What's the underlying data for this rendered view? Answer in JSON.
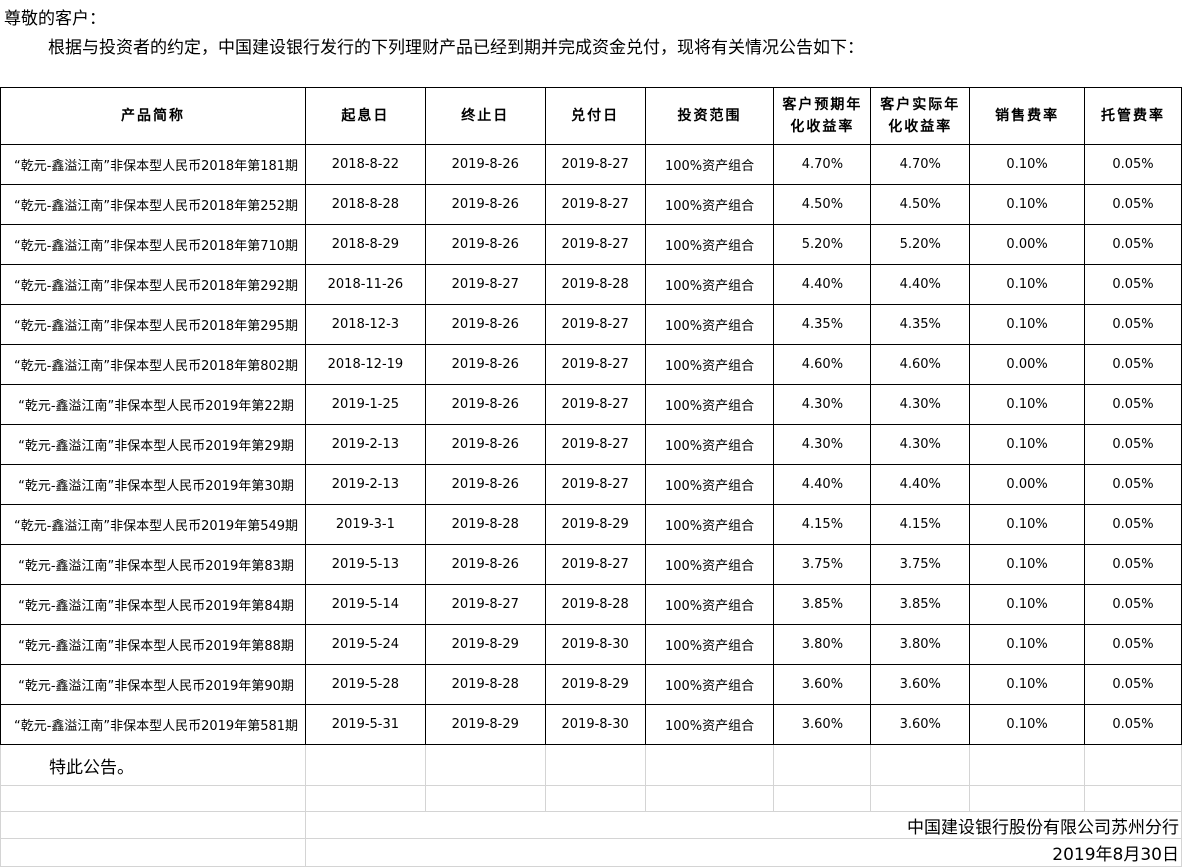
{
  "greeting": "尊敬的客户：",
  "intro": "根据与投资者的约定，中国建设银行发行的下列理财产品已经到期并完成资金兑付，现将有关情况公告如下：",
  "table": {
    "headers": [
      "产品简称",
      "起息日",
      "终止日",
      "兑付日",
      "投资范围",
      "客户预期年化收益率",
      "客户实际年化收益率",
      "销售费率",
      "托管费率"
    ],
    "rows": [
      [
        "“乾元-鑫溢江南”非保本型人民币2018年第181期",
        "2018-8-22",
        "2019-8-26",
        "2019-8-27",
        "100%资产组合",
        "4.70%",
        "4.70%",
        "0.10%",
        "0.05%"
      ],
      [
        "“乾元-鑫溢江南”非保本型人民币2018年第252期",
        "2018-8-28",
        "2019-8-26",
        "2019-8-27",
        "100%资产组合",
        "4.50%",
        "4.50%",
        "0.10%",
        "0.05%"
      ],
      [
        "“乾元-鑫溢江南”非保本型人民币2018年第710期",
        "2018-8-29",
        "2019-8-26",
        "2019-8-27",
        "100%资产组合",
        "5.20%",
        "5.20%",
        "0.00%",
        "0.05%"
      ],
      [
        "“乾元-鑫溢江南”非保本型人民币2018年第292期",
        "2018-11-26",
        "2019-8-27",
        "2019-8-28",
        "100%资产组合",
        "4.40%",
        "4.40%",
        "0.10%",
        "0.05%"
      ],
      [
        "“乾元-鑫溢江南”非保本型人民币2018年第295期",
        "2018-12-3",
        "2019-8-26",
        "2019-8-27",
        "100%资产组合",
        "4.35%",
        "4.35%",
        "0.10%",
        "0.05%"
      ],
      [
        "“乾元-鑫溢江南”非保本型人民币2018年第802期",
        "2018-12-19",
        "2019-8-26",
        "2019-8-27",
        "100%资产组合",
        "4.60%",
        "4.60%",
        "0.00%",
        "0.05%"
      ],
      [
        "“乾元-鑫溢江南”非保本型人民币2019年第22期",
        "2019-1-25",
        "2019-8-26",
        "2019-8-27",
        "100%资产组合",
        "4.30%",
        "4.30%",
        "0.10%",
        "0.05%"
      ],
      [
        "“乾元-鑫溢江南”非保本型人民币2019年第29期",
        "2019-2-13",
        "2019-8-26",
        "2019-8-27",
        "100%资产组合",
        "4.30%",
        "4.30%",
        "0.10%",
        "0.05%"
      ],
      [
        "“乾元-鑫溢江南”非保本型人民币2019年第30期",
        "2019-2-13",
        "2019-8-26",
        "2019-8-27",
        "100%资产组合",
        "4.40%",
        "4.40%",
        "0.00%",
        "0.05%"
      ],
      [
        "“乾元-鑫溢江南”非保本型人民币2019年第549期",
        "2019-3-1",
        "2019-8-28",
        "2019-8-29",
        "100%资产组合",
        "4.15%",
        "4.15%",
        "0.10%",
        "0.05%"
      ],
      [
        "“乾元-鑫溢江南”非保本型人民币2019年第83期",
        "2019-5-13",
        "2019-8-26",
        "2019-8-27",
        "100%资产组合",
        "3.75%",
        "3.75%",
        "0.10%",
        "0.05%"
      ],
      [
        "“乾元-鑫溢江南”非保本型人民币2019年第84期",
        "2019-5-14",
        "2019-8-27",
        "2019-8-28",
        "100%资产组合",
        "3.85%",
        "3.85%",
        "0.10%",
        "0.05%"
      ],
      [
        "“乾元-鑫溢江南”非保本型人民币2019年第88期",
        "2019-5-24",
        "2019-8-29",
        "2019-8-30",
        "100%资产组合",
        "3.80%",
        "3.80%",
        "0.10%",
        "0.05%"
      ],
      [
        "“乾元-鑫溢江南”非保本型人民币2019年第90期",
        "2019-5-28",
        "2019-8-28",
        "2019-8-29",
        "100%资产组合",
        "3.60%",
        "3.60%",
        "0.10%",
        "0.05%"
      ],
      [
        "“乾元-鑫溢江南”非保本型人民币2019年第581期",
        "2019-5-31",
        "2019-8-29",
        "2019-8-30",
        "100%资产组合",
        "3.60%",
        "3.60%",
        "0.10%",
        "0.05%"
      ]
    ]
  },
  "notice": "特此公告。",
  "signature": "中国建设银行股份有限公司苏州分行",
  "date": "2019年8月30日"
}
